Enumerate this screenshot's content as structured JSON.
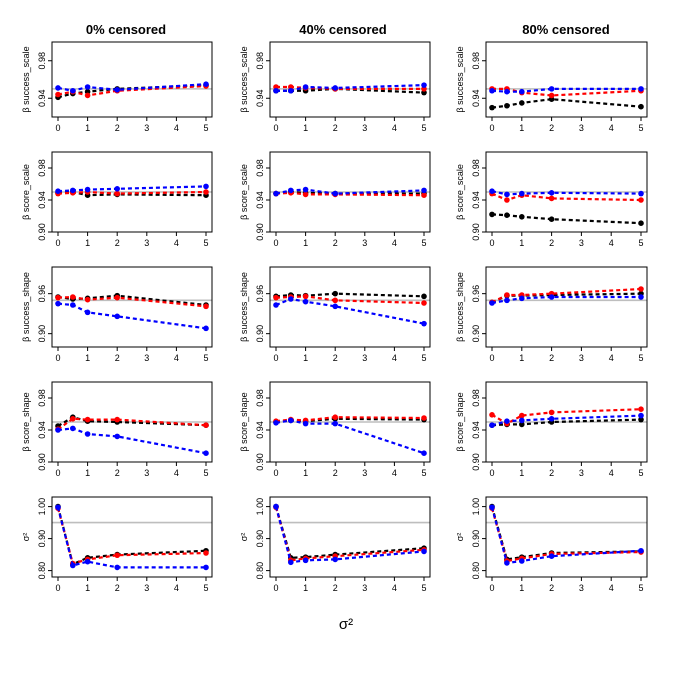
{
  "chart_data": {
    "type": "line",
    "column_titles": [
      "0% censored",
      "40% censored",
      "80% censored"
    ],
    "row_labels": [
      "β success_scale",
      "β score_scale",
      "β success_shape",
      "β score_shape",
      "σ²"
    ],
    "x": [
      0,
      0.5,
      1,
      2,
      5
    ],
    "xlim": [
      0,
      5
    ],
    "xticks": [
      0,
      1,
      2,
      3,
      4,
      5
    ],
    "xlabel": "σ²",
    "reference_line": 0.95,
    "series_colors": {
      "black": "#000000",
      "red": "#ff0000",
      "blue": "#0000ff",
      "reference": "#bebebe"
    },
    "rows": [
      {
        "ylabel": "β success_scale",
        "ylim": [
          0.92,
          1.0
        ],
        "yticks": [
          0.94,
          0.98
        ],
        "panels": [
          {
            "series": [
              {
                "name": "black",
                "values": [
                  0.941,
                  0.945,
                  0.947,
                  0.95,
                  0.954
                ]
              },
              {
                "name": "red",
                "values": [
                  0.944,
                  0.947,
                  0.943,
                  0.948,
                  0.953
                ]
              },
              {
                "name": "blue",
                "values": [
                  0.951,
                  0.948,
                  0.952,
                  0.949,
                  0.955
                ]
              }
            ]
          },
          {
            "series": [
              {
                "name": "black",
                "values": [
                  0.948,
                  0.948,
                  0.948,
                  0.95,
                  0.946
                ]
              },
              {
                "name": "red",
                "values": [
                  0.952,
                  0.952,
                  0.951,
                  0.95,
                  0.95
                ]
              },
              {
                "name": "blue",
                "values": [
                  0.948,
                  0.948,
                  0.952,
                  0.951,
                  0.954
                ]
              }
            ]
          },
          {
            "series": [
              {
                "name": "black",
                "values": [
                  0.93,
                  0.932,
                  0.935,
                  0.939,
                  0.931
                ]
              },
              {
                "name": "red",
                "values": [
                  0.95,
                  0.95,
                  0.946,
                  0.943,
                  0.948
                ]
              },
              {
                "name": "blue",
                "values": [
                  0.948,
                  0.947,
                  0.947,
                  0.95,
                  0.95
                ]
              }
            ]
          }
        ]
      },
      {
        "ylabel": "β score_scale",
        "ylim": [
          0.9,
          1.0
        ],
        "yticks": [
          0.9,
          0.94,
          0.98
        ],
        "panels": [
          {
            "series": [
              {
                "name": "black",
                "values": [
                  0.949,
                  0.95,
                  0.946,
                  0.947,
                  0.946
                ]
              },
              {
                "name": "red",
                "values": [
                  0.948,
                  0.949,
                  0.95,
                  0.948,
                  0.95
                ]
              },
              {
                "name": "blue",
                "values": [
                  0.951,
                  0.952,
                  0.953,
                  0.954,
                  0.957
                ]
              }
            ]
          },
          {
            "series": [
              {
                "name": "black",
                "values": [
                  0.948,
                  0.95,
                  0.949,
                  0.948,
                  0.948
                ]
              },
              {
                "name": "red",
                "values": [
                  0.948,
                  0.949,
                  0.947,
                  0.947,
                  0.946
                ]
              },
              {
                "name": "blue",
                "values": [
                  0.948,
                  0.952,
                  0.953,
                  0.948,
                  0.952
                ]
              }
            ]
          },
          {
            "series": [
              {
                "name": "black",
                "values": [
                  0.922,
                  0.921,
                  0.919,
                  0.916,
                  0.911
                ]
              },
              {
                "name": "red",
                "values": [
                  0.948,
                  0.94,
                  0.946,
                  0.942,
                  0.94
                ]
              },
              {
                "name": "blue",
                "values": [
                  0.951,
                  0.947,
                  0.948,
                  0.949,
                  0.948
                ]
              }
            ]
          }
        ]
      },
      {
        "ylabel": "β success_shape",
        "ylim": [
          0.88,
          1.0
        ],
        "yticks": [
          0.9,
          0.96
        ],
        "panels": [
          {
            "series": [
              {
                "name": "black",
                "values": [
                  0.955,
                  0.952,
                  0.953,
                  0.957,
                  0.943
                ]
              },
              {
                "name": "red",
                "values": [
                  0.954,
                  0.955,
                  0.951,
                  0.954,
                  0.941
                ]
              },
              {
                "name": "blue",
                "values": [
                  0.945,
                  0.943,
                  0.932,
                  0.926,
                  0.908
                ]
              }
            ]
          },
          {
            "series": [
              {
                "name": "black",
                "values": [
                  0.956,
                  0.958,
                  0.957,
                  0.96,
                  0.956
                ]
              },
              {
                "name": "red",
                "values": [
                  0.954,
                  0.955,
                  0.956,
                  0.95,
                  0.946
                ]
              },
              {
                "name": "blue",
                "values": [
                  0.943,
                  0.952,
                  0.948,
                  0.941,
                  0.915
                ]
              }
            ]
          },
          {
            "series": [
              {
                "name": "black",
                "values": [
                  0.947,
                  0.957,
                  0.957,
                  0.958,
                  0.96
                ]
              },
              {
                "name": "red",
                "values": [
                  0.947,
                  0.958,
                  0.958,
                  0.96,
                  0.967
                ]
              },
              {
                "name": "blue",
                "values": [
                  0.946,
                  0.95,
                  0.953,
                  0.955,
                  0.955
                ]
              }
            ]
          }
        ]
      },
      {
        "ylabel": "β score_shape",
        "ylim": [
          0.9,
          1.0
        ],
        "yticks": [
          0.9,
          0.94,
          0.98
        ],
        "panels": [
          {
            "series": [
              {
                "name": "black",
                "values": [
                  0.945,
                  0.956,
                  0.951,
                  0.95,
                  0.946
                ]
              },
              {
                "name": "red",
                "values": [
                  0.941,
                  0.954,
                  0.953,
                  0.953,
                  0.946
                ]
              },
              {
                "name": "blue",
                "values": [
                  0.94,
                  0.942,
                  0.935,
                  0.932,
                  0.911
                ]
              }
            ]
          },
          {
            "series": [
              {
                "name": "black",
                "values": [
                  0.95,
                  0.952,
                  0.951,
                  0.954,
                  0.953
                ]
              },
              {
                "name": "red",
                "values": [
                  0.951,
                  0.953,
                  0.952,
                  0.956,
                  0.955
                ]
              },
              {
                "name": "blue",
                "values": [
                  0.949,
                  0.952,
                  0.948,
                  0.948,
                  0.911
                ]
              }
            ]
          },
          {
            "series": [
              {
                "name": "black",
                "values": [
                  0.946,
                  0.947,
                  0.947,
                  0.95,
                  0.953
                ]
              },
              {
                "name": "red",
                "values": [
                  0.959,
                  0.948,
                  0.958,
                  0.962,
                  0.966
                ]
              },
              {
                "name": "blue",
                "values": [
                  0.946,
                  0.951,
                  0.952,
                  0.954,
                  0.958
                ]
              }
            ]
          }
        ]
      },
      {
        "ylabel": "σ²",
        "ylim": [
          0.78,
          1.03
        ],
        "yticks": [
          0.8,
          0.9,
          1.0
        ],
        "panels": [
          {
            "series": [
              {
                "name": "black",
                "values": [
                  1.0,
                  0.82,
                  0.84,
                  0.85,
                  0.862
                ]
              },
              {
                "name": "red",
                "values": [
                  0.995,
                  0.822,
                  0.835,
                  0.848,
                  0.855
                ]
              },
              {
                "name": "blue",
                "values": [
                  0.998,
                  0.816,
                  0.828,
                  0.81,
                  0.81
                ]
              }
            ]
          },
          {
            "series": [
              {
                "name": "black",
                "values": [
                  1.0,
                  0.84,
                  0.842,
                  0.85,
                  0.87
                ]
              },
              {
                "name": "red",
                "values": [
                  0.998,
                  0.832,
                  0.838,
                  0.845,
                  0.865
                ]
              },
              {
                "name": "blue",
                "values": [
                  1.0,
                  0.826,
                  0.832,
                  0.835,
                  0.86
                ]
              }
            ]
          },
          {
            "series": [
              {
                "name": "black",
                "values": [
                  1.0,
                  0.835,
                  0.842,
                  0.855,
                  0.86
                ]
              },
              {
                "name": "red",
                "values": [
                  0.995,
                  0.83,
                  0.838,
                  0.852,
                  0.858
                ]
              },
              {
                "name": "blue",
                "values": [
                  0.998,
                  0.824,
                  0.83,
                  0.845,
                  0.862
                ]
              }
            ]
          }
        ]
      }
    ]
  }
}
